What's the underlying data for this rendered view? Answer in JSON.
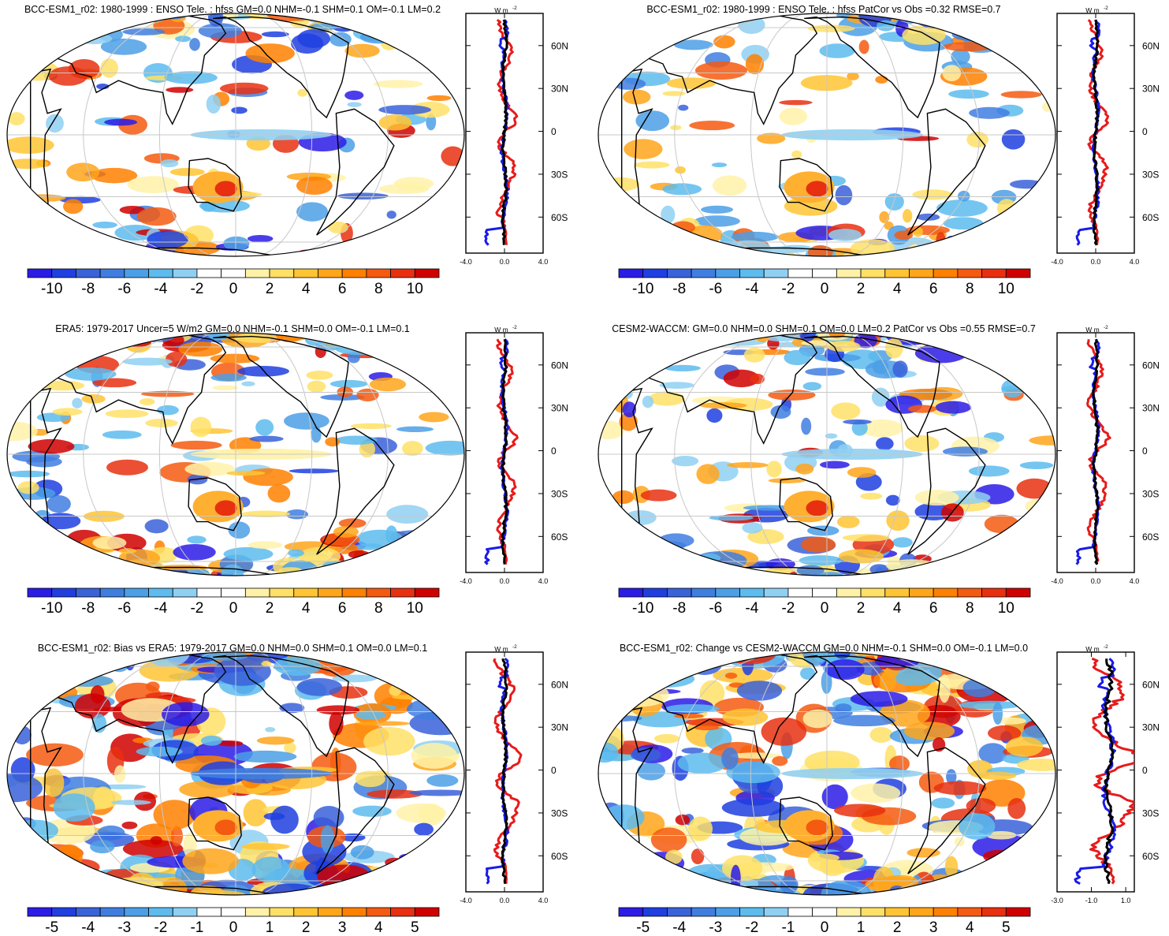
{
  "figure": {
    "panels": [
      {
        "id": "model-enso",
        "title": "BCC-ESM1_r02: 1980-1999 : ENSO Tele. : hfss GM=0.0 NHM=-0.1 SHM=0.1 OM=-0.1 LM=0.2",
        "colorbar_labels": [
          "-10",
          "-8",
          "-6",
          "-4",
          "-2",
          "0",
          "2",
          "4",
          "6",
          "8",
          "10"
        ],
        "zonal_unit": "W m",
        "zonal_unit_sup": "-2",
        "zonal_ticks": [
          "-4.0",
          "0.0",
          "4.0"
        ],
        "zonal_xlim": [
          -4,
          4
        ],
        "lat_labels": [
          "60N",
          "30N",
          "0",
          "30S",
          "60S"
        ]
      },
      {
        "id": "model-enso-patcor",
        "title": "BCC-ESM1_r02: 1980-1999 : ENSO Tele. : hfss PatCor vs Obs =0.32 RMSE=0.7",
        "colorbar_labels": [
          "-10",
          "-8",
          "-6",
          "-4",
          "-2",
          "0",
          "2",
          "4",
          "6",
          "8",
          "10"
        ],
        "zonal_unit": "W m",
        "zonal_unit_sup": "-2",
        "zonal_ticks": [
          "-4.0",
          "0.0",
          "4.0"
        ],
        "zonal_xlim": [
          -4,
          4
        ],
        "lat_labels": [
          "60N",
          "30N",
          "0",
          "30S",
          "60S"
        ]
      },
      {
        "id": "era5-obs",
        "title": "ERA5: 1979-2017 Uncer=5 W/m2 GM=0.0 NHM=-0.1 SHM=0.0 OM=-0.1 LM=0.1",
        "colorbar_labels": [
          "-10",
          "-8",
          "-6",
          "-4",
          "-2",
          "0",
          "2",
          "4",
          "6",
          "8",
          "10"
        ],
        "zonal_unit": "W m",
        "zonal_unit_sup": "-2",
        "zonal_ticks": [
          "-4.0",
          "0.0",
          "4.0"
        ],
        "zonal_xlim": [
          -4,
          4
        ],
        "lat_labels": [
          "60N",
          "30N",
          "0",
          "30S",
          "60S"
        ]
      },
      {
        "id": "cesm2-waccm",
        "title": "CESM2-WACCM: GM=0.0 NHM=0.0 SHM=0.1 OM=0.0 LM=0.2 PatCor vs Obs =0.55 RMSE=0.7",
        "colorbar_labels": [
          "-10",
          "-8",
          "-6",
          "-4",
          "-2",
          "0",
          "2",
          "4",
          "6",
          "8",
          "10"
        ],
        "zonal_unit": "W m",
        "zonal_unit_sup": "-2",
        "zonal_ticks": [
          "-4.0",
          "0.0",
          "4.0"
        ],
        "zonal_xlim": [
          -4,
          4
        ],
        "lat_labels": [
          "60N",
          "30N",
          "0",
          "30S",
          "60S"
        ]
      },
      {
        "id": "bias-vs-era5",
        "title": "BCC-ESM1_r02: Bias vs ERA5: 1979-2017 GM=0.0 NHM=0.0 SHM=0.1 OM=0.0 LM=0.1",
        "colorbar_labels": [
          "-5",
          "-4",
          "-3",
          "-2",
          "-1",
          "0",
          "1",
          "2",
          "3",
          "4",
          "5"
        ],
        "zonal_unit": "W m",
        "zonal_unit_sup": "-2",
        "zonal_ticks": [
          "-4.0",
          "0.0",
          "4.0"
        ],
        "zonal_xlim": [
          -4,
          4
        ],
        "lat_labels": [
          "60N",
          "30N",
          "0",
          "30S",
          "60S"
        ]
      },
      {
        "id": "change-vs-cesm2",
        "title": "BCC-ESM1_r02: Change vs CESM2-WACCM GM=0.0 NHM=-0.1 SHM=0.0 OM=-0.1 LM=0.0",
        "colorbar_labels": [
          "-5",
          "-4",
          "-3",
          "-2",
          "-1",
          "0",
          "1",
          "2",
          "3",
          "4",
          "5"
        ],
        "zonal_unit": "W m",
        "zonal_unit_sup": "-2",
        "zonal_ticks": [
          "-3.0",
          "-1.0",
          "1.0"
        ],
        "zonal_xlim": [
          -3,
          1.5
        ],
        "lat_labels": [
          "60N",
          "30N",
          "0",
          "30S",
          "60S"
        ]
      }
    ],
    "colorbar_colors": [
      "#2b1ce6",
      "#1f3fe0",
      "#3a62d9",
      "#3f7ee0",
      "#4b9fe6",
      "#5dbbee",
      "#8fd0f2",
      "#ffffff",
      "#ffffff",
      "#fff2a8",
      "#ffe066",
      "#ffc433",
      "#ffa51a",
      "#ff8000",
      "#f45a10",
      "#e83010",
      "#d00000"
    ],
    "series_colors": {
      "land": "#e81a1a",
      "ocean": "#1a1ae8",
      "global": "#000000"
    },
    "colors": {
      "coast": "#000000",
      "grid": "#c8c8c8"
    }
  }
}
